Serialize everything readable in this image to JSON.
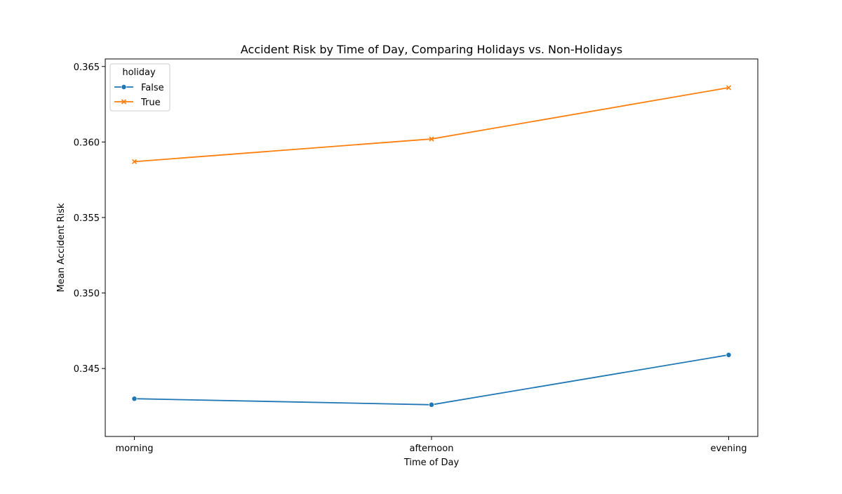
{
  "chart_data": {
    "type": "line",
    "title": "Accident Risk by Time of Day, Comparing Holidays vs. Non-Holidays",
    "xlabel": "Time of Day",
    "ylabel": "Mean Accident Risk",
    "categories": [
      "morning",
      "afternoon",
      "evening"
    ],
    "ylim": [
      0.3405,
      0.3655
    ],
    "yticks": [
      0.345,
      0.35,
      0.355,
      0.36,
      0.365
    ],
    "ytick_labels": [
      "0.345",
      "0.350",
      "0.355",
      "0.360",
      "0.365"
    ],
    "grid": false,
    "legend": {
      "title": "holiday",
      "placement": "top-left"
    },
    "series": [
      {
        "name": "False",
        "values": [
          0.343,
          0.3426,
          0.3459
        ],
        "color": "#1f77b4",
        "marker": "circle"
      },
      {
        "name": "True",
        "values": [
          0.3587,
          0.3602,
          0.3636
        ],
        "color": "#ff7f0e",
        "marker": "x"
      }
    ]
  }
}
